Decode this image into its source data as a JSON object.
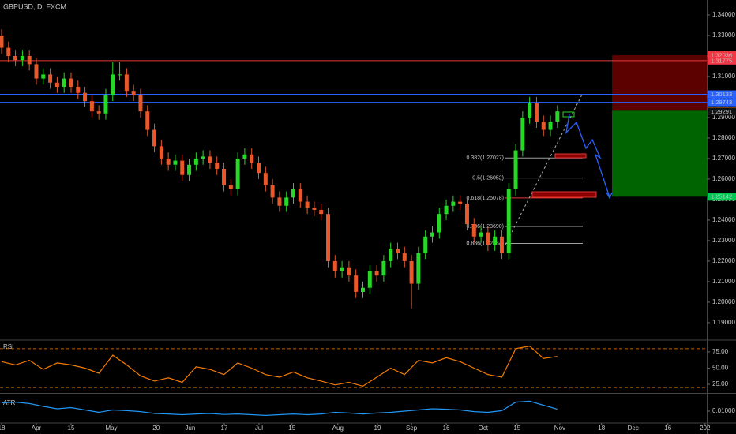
{
  "chart_data": [
    {
      "type": "candlestick",
      "title": "GBPUSD, D, FXCM",
      "up_color": "#26d926",
      "down_color": "#e8582a",
      "x": [
        0,
        2,
        4,
        6,
        8,
        10,
        12,
        14,
        16,
        18,
        20,
        22,
        24,
        26,
        28,
        30,
        32,
        34,
        36,
        38,
        40,
        42,
        44,
        46,
        48,
        50,
        52,
        54,
        56,
        58,
        60,
        62,
        64,
        66,
        68,
        70,
        72,
        74,
        76,
        78,
        80,
        82,
        84,
        86,
        88,
        90,
        92,
        94,
        96,
        98,
        100,
        102,
        104,
        106,
        108,
        110,
        112,
        114,
        116,
        118,
        120,
        122,
        124,
        126,
        128,
        130,
        132,
        134,
        136,
        138,
        140,
        142,
        144,
        146,
        148,
        150,
        152,
        154,
        156,
        158,
        160
      ],
      "open": [
        1.33,
        1.324,
        1.32,
        1.318,
        1.32,
        1.316,
        1.309,
        1.311,
        1.307,
        1.305,
        1.309,
        1.305,
        1.302,
        1.298,
        1.293,
        1.292,
        1.301,
        1.311,
        1.311,
        1.303,
        1.301,
        1.293,
        1.284,
        1.276,
        1.27,
        1.267,
        1.269,
        1.262,
        1.267,
        1.27,
        1.271,
        1.268,
        1.265,
        1.257,
        1.255,
        1.27,
        1.272,
        1.268,
        1.263,
        1.257,
        1.251,
        1.247,
        1.251,
        1.255,
        1.249,
        1.246,
        1.245,
        1.243,
        1.22,
        1.215,
        1.217,
        1.213,
        1.205,
        1.207,
        1.215,
        1.213,
        1.22,
        1.226,
        1.224,
        1.22,
        1.209,
        1.224,
        1.232,
        1.234,
        1.243,
        1.247,
        1.249,
        1.248,
        1.238,
        1.232,
        1.234,
        1.228,
        1.232,
        1.224,
        1.255,
        1.274,
        1.29,
        1.297,
        1.288,
        1.284,
        1.288
      ],
      "high": [
        1.333,
        1.327,
        1.323,
        1.323,
        1.323,
        1.319,
        1.314,
        1.314,
        1.31,
        1.312,
        1.312,
        1.308,
        1.305,
        1.301,
        1.296,
        1.304,
        1.317,
        1.317,
        1.314,
        1.306,
        1.304,
        1.296,
        1.287,
        1.279,
        1.273,
        1.272,
        1.272,
        1.27,
        1.273,
        1.274,
        1.274,
        1.271,
        1.268,
        1.26,
        1.273,
        1.275,
        1.275,
        1.271,
        1.266,
        1.26,
        1.254,
        1.254,
        1.258,
        1.258,
        1.252,
        1.249,
        1.248,
        1.246,
        1.223,
        1.22,
        1.22,
        1.216,
        1.21,
        1.218,
        1.218,
        1.223,
        1.229,
        1.229,
        1.227,
        1.223,
        1.227,
        1.235,
        1.237,
        1.246,
        1.25,
        1.252,
        1.252,
        1.251,
        1.241,
        1.237,
        1.237,
        1.235,
        1.235,
        1.258,
        1.277,
        1.293,
        1.3,
        1.3,
        1.291,
        1.291,
        1.296
      ],
      "low": [
        1.321,
        1.317,
        1.315,
        1.315,
        1.313,
        1.306,
        1.306,
        1.304,
        1.302,
        1.302,
        1.302,
        1.299,
        1.295,
        1.29,
        1.289,
        1.289,
        1.298,
        1.308,
        1.3,
        1.298,
        1.29,
        1.281,
        1.273,
        1.267,
        1.264,
        1.264,
        1.259,
        1.259,
        1.264,
        1.267,
        1.265,
        1.262,
        1.254,
        1.252,
        1.252,
        1.267,
        1.265,
        1.26,
        1.254,
        1.248,
        1.244,
        1.244,
        1.248,
        1.246,
        1.243,
        1.242,
        1.24,
        1.217,
        1.212,
        1.212,
        1.21,
        1.202,
        1.202,
        1.204,
        1.21,
        1.21,
        1.217,
        1.221,
        1.217,
        1.197,
        1.206,
        1.221,
        1.229,
        1.231,
        1.24,
        1.244,
        1.245,
        1.235,
        1.229,
        1.229,
        1.225,
        1.225,
        1.221,
        1.221,
        1.252,
        1.271,
        1.287,
        1.285,
        1.281,
        1.281,
        1.285
      ],
      "close": [
        1.324,
        1.32,
        1.318,
        1.32,
        1.316,
        1.309,
        1.311,
        1.307,
        1.305,
        1.309,
        1.305,
        1.302,
        1.298,
        1.293,
        1.292,
        1.301,
        1.311,
        1.311,
        1.303,
        1.301,
        1.293,
        1.284,
        1.276,
        1.27,
        1.267,
        1.269,
        1.262,
        1.267,
        1.27,
        1.271,
        1.268,
        1.265,
        1.257,
        1.255,
        1.27,
        1.272,
        1.268,
        1.263,
        1.257,
        1.251,
        1.247,
        1.251,
        1.255,
        1.249,
        1.246,
        1.245,
        1.243,
        1.22,
        1.215,
        1.217,
        1.213,
        1.205,
        1.207,
        1.215,
        1.213,
        1.22,
        1.226,
        1.224,
        1.22,
        1.209,
        1.224,
        1.232,
        1.234,
        1.243,
        1.247,
        1.249,
        1.248,
        1.238,
        1.232,
        1.234,
        1.228,
        1.232,
        1.224,
        1.255,
        1.274,
        1.29,
        1.297,
        1.288,
        1.284,
        1.288,
        1.293
      ],
      "xlim": [
        -0.4545,
        203
      ],
      "xticks": [
        {
          "value": 0,
          "label": "18"
        },
        {
          "value": 10,
          "label": "Apr"
        },
        {
          "value": 20,
          "label": "15"
        },
        {
          "value": 31.6,
          "label": "May"
        },
        {
          "value": 44.5,
          "label": "20"
        },
        {
          "value": 54.3,
          "label": "Jun"
        },
        {
          "value": 64.1,
          "label": "17"
        },
        {
          "value": 74.1,
          "label": "Jul"
        },
        {
          "value": 83.6,
          "label": "15"
        },
        {
          "value": 96.8,
          "label": "Aug"
        },
        {
          "value": 108.2,
          "label": "19"
        },
        {
          "value": 118,
          "label": "Sep"
        },
        {
          "value": 128,
          "label": "16"
        },
        {
          "value": 138.6,
          "label": "Oct"
        },
        {
          "value": 148.4,
          "label": "15"
        },
        {
          "value": 160.7,
          "label": "Nov"
        },
        {
          "value": 172.7,
          "label": "18"
        },
        {
          "value": 181.8,
          "label": "Dec"
        },
        {
          "value": 191.8,
          "label": "16"
        },
        {
          "value": 202.5,
          "label": "202"
        }
      ],
      "ylim": [
        1.1819,
        1.3473
      ],
      "yticks": [
        {
          "value": 1.34,
          "label": "1.34000"
        },
        {
          "value": 1.33,
          "label": "1.33000"
        },
        {
          "value": 1.32,
          "label": "1.32000"
        },
        {
          "value": 1.31,
          "label": "1.31000"
        },
        {
          "value": 1.3,
          "label": "1.30000"
        },
        {
          "value": 1.29,
          "label": "1.29000"
        },
        {
          "value": 1.28,
          "label": "1.28000"
        },
        {
          "value": 1.27,
          "label": "1.27000"
        },
        {
          "value": 1.26,
          "label": "1.26000"
        },
        {
          "value": 1.25,
          "label": "1.25000"
        },
        {
          "value": 1.24,
          "label": "1.24000"
        },
        {
          "value": 1.23,
          "label": "1.23000"
        },
        {
          "value": 1.22,
          "label": "1.22000"
        },
        {
          "value": 1.21,
          "label": "1.21000"
        },
        {
          "value": 1.2,
          "label": "1.20000"
        },
        {
          "value": 1.19,
          "label": "1.19000"
        }
      ],
      "levels": [
        {
          "value": 1.31775,
          "color": "#e53935"
        },
        {
          "value": 1.30133,
          "color": "#2962ff"
        },
        {
          "value": 1.29743,
          "color": "#2962ff"
        }
      ],
      "fib_levels": [
        {
          "label": "0.382(1.27027)",
          "value": 1.27027,
          "color": "#9e9e9e"
        },
        {
          "label": "0.5(1.26052)",
          "value": 1.26052,
          "color": "#9e9e9e"
        },
        {
          "label": "0.618(1.25078)",
          "value": 1.25078,
          "color": "#e53935"
        },
        {
          "label": "0.786(1.23690)",
          "value": 1.2369,
          "color": "#9e9e9e"
        },
        {
          "label": "0.886(1.22864)",
          "value": 1.22864,
          "color": "#9e9e9e"
        }
      ],
      "position": {
        "stop": 1.32036,
        "entry": 1.29331,
        "target": 1.25142,
        "stop_color": "#5c0000",
        "target_color": "#006400"
      },
      "price_labels": [
        {
          "value": 1.32036,
          "color": "#f23645"
        },
        {
          "value": 1.31775,
          "color": "#f23645"
        },
        {
          "value": 1.30133,
          "color": "#2962ff"
        },
        {
          "value": 1.29743,
          "color": "#2962ff"
        },
        {
          "value": 1.29331,
          "color": "#f57c00"
        },
        {
          "value": 1.29291,
          "color": "#111111"
        },
        {
          "value": 1.25142,
          "color": "#00c853"
        }
      ]
    },
    {
      "type": "line",
      "title": "RSI",
      "color": "#f57c00",
      "x": [
        0,
        4,
        8,
        12,
        16,
        20,
        24,
        28,
        32,
        36,
        40,
        44,
        48,
        52,
        56,
        60,
        64,
        68,
        72,
        76,
        80,
        84,
        88,
        92,
        96,
        100,
        104,
        108,
        112,
        116,
        120,
        124,
        128,
        132,
        136,
        140,
        144,
        148,
        152,
        156,
        160
      ],
      "values": [
        60,
        55,
        62,
        48,
        58,
        55,
        50,
        42,
        70,
        55,
        38,
        30,
        35,
        28,
        52,
        48,
        40,
        58,
        50,
        40,
        36,
        44,
        35,
        30,
        24,
        28,
        22,
        36,
        50,
        40,
        62,
        58,
        66,
        60,
        50,
        40,
        36,
        80,
        84,
        65,
        68
      ],
      "ylim": [
        12.8,
        92
      ],
      "bands": [
        80,
        20
      ],
      "yticks": [
        {
          "value": 75,
          "label": "75.00"
        },
        {
          "value": 50,
          "label": "50.00"
        },
        {
          "value": 25,
          "label": "25.00"
        }
      ]
    },
    {
      "type": "line",
      "title": "ATR",
      "color": "#2196f3",
      "x": [
        0,
        4,
        8,
        12,
        16,
        20,
        24,
        28,
        32,
        36,
        40,
        44,
        48,
        52,
        56,
        60,
        64,
        68,
        72,
        76,
        80,
        84,
        88,
        92,
        96,
        100,
        104,
        108,
        112,
        116,
        120,
        124,
        128,
        132,
        136,
        140,
        144,
        148,
        152,
        156,
        160
      ],
      "values": [
        0.0135,
        0.0138,
        0.0132,
        0.012,
        0.011,
        0.0115,
        0.0105,
        0.0095,
        0.0105,
        0.0102,
        0.0098,
        0.009,
        0.0088,
        0.0085,
        0.0088,
        0.009,
        0.0086,
        0.0088,
        0.0085,
        0.0082,
        0.0085,
        0.0088,
        0.0085,
        0.0088,
        0.0095,
        0.0092,
        0.0088,
        0.0092,
        0.0095,
        0.01,
        0.0105,
        0.011,
        0.0108,
        0.0105,
        0.0098,
        0.0095,
        0.0102,
        0.0138,
        0.0142,
        0.0125,
        0.0108
      ],
      "ylim": [
        0.00533,
        0.017
      ],
      "yticks": [
        {
          "value": 0.01,
          "label": "0.01000"
        }
      ]
    }
  ]
}
